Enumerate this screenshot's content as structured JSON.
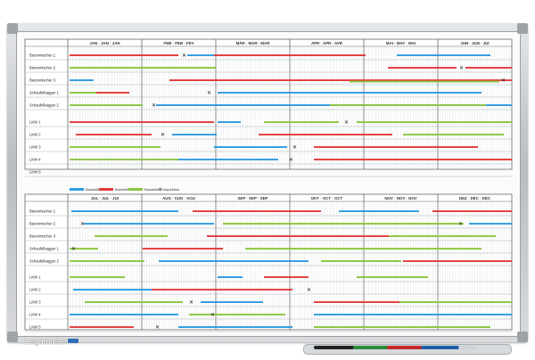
{
  "brand": {
    "name": "Legamaster"
  },
  "colors": {
    "blue": "#2f9be0",
    "red": "#e23a3a",
    "green": "#8cc63f",
    "grid": "#c8ccd0",
    "line": "#555"
  },
  "top_panel": {
    "months": [
      "JAN · JAN · JAN",
      "FEB · FEB · FEV",
      "MÄR · MAR · MAR",
      "APR · APR · AVR",
      "MAI · MAY · MAI",
      "JUN · JUN · JUI"
    ],
    "rows": [
      "Betonmischer 1",
      "Betonmischer 2",
      "Betonmischer 3",
      "Schaufelbagger 1",
      "Schaufelbagger 2",
      "LKW 1",
      "LKW 2",
      "LKW 3",
      "LKW 4",
      "LKW 5"
    ]
  },
  "legend": {
    "items": [
      {
        "label": "Baustelle 1",
        "color": "blue"
      },
      {
        "label": "Baustelle 2",
        "color": "red"
      },
      {
        "label": "Baustelle 3",
        "color": "green"
      },
      {
        "label": "Inspektion",
        "symbol": "✕"
      }
    ]
  },
  "bottom_panel": {
    "months": [
      "JUL · JUL · JUI",
      "AUG · AUG · AOU",
      "SEP · SEP · SEP",
      "OKT · OCT · OCT",
      "NOV · NOV · NOV",
      "DEZ · DEC · DEC"
    ],
    "rows": [
      "Betonmischer 1",
      "Betonmischer 2",
      "Betonmischer 3",
      "Schaufelbagger 1",
      "Schaufelbagger 2",
      "LKW 1",
      "LKW 2",
      "LKW 3",
      "LKW 4",
      "LKW 5"
    ]
  }
}
